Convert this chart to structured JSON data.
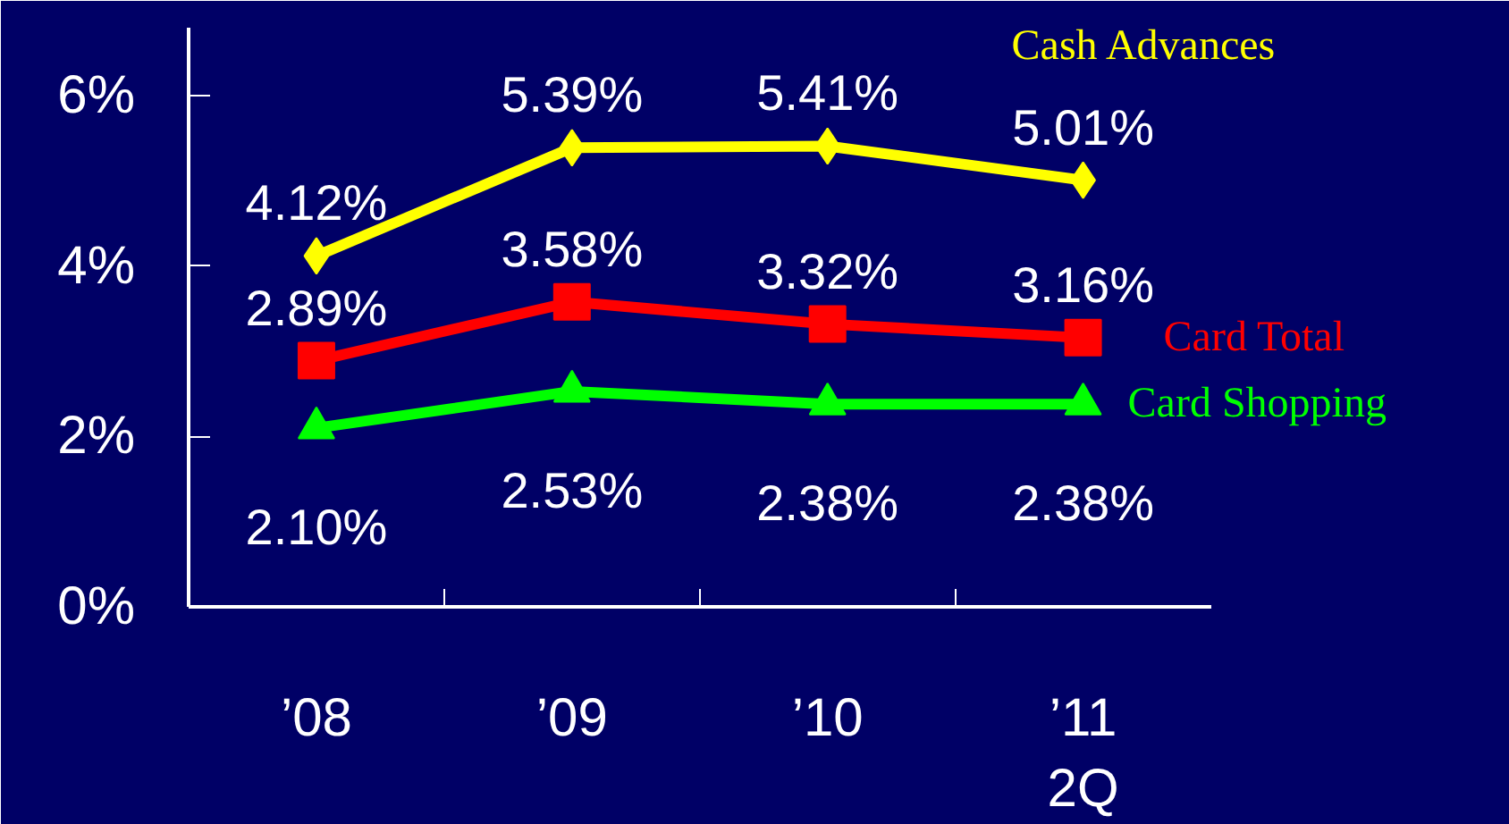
{
  "chart_data": {
    "type": "line",
    "categories": [
      "’08",
      "’09",
      "’10",
      "’11\n2Q"
    ],
    "series": [
      {
        "name": "Cash Advances",
        "color": "#ffff00",
        "values": [
          4.12,
          5.39,
          5.41,
          5.01
        ],
        "marker": "diamond",
        "value_labels": [
          "4.12%",
          "5.39%",
          "5.41%",
          "5.01%"
        ]
      },
      {
        "name": "Card Total",
        "color": "#ff0000",
        "values": [
          2.89,
          3.58,
          3.32,
          3.16
        ],
        "marker": "square",
        "value_labels": [
          "2.89%",
          "3.58%",
          "3.32%",
          "3.16%"
        ]
      },
      {
        "name": "Card Shopping",
        "color": "#00ff00",
        "values": [
          2.1,
          2.53,
          2.38,
          2.38
        ],
        "marker": "triangle",
        "value_labels": [
          "2.10%",
          "2.53%",
          "2.38%",
          "2.38%"
        ]
      }
    ],
    "ylim": [
      0,
      6.8
    ],
    "yticks": [
      {
        "value": 0,
        "label": "0%"
      },
      {
        "value": 2,
        "label": "2%"
      },
      {
        "value": 4,
        "label": "4%"
      },
      {
        "value": 6,
        "label": "6%"
      }
    ],
    "grid": false,
    "legend": "right"
  }
}
